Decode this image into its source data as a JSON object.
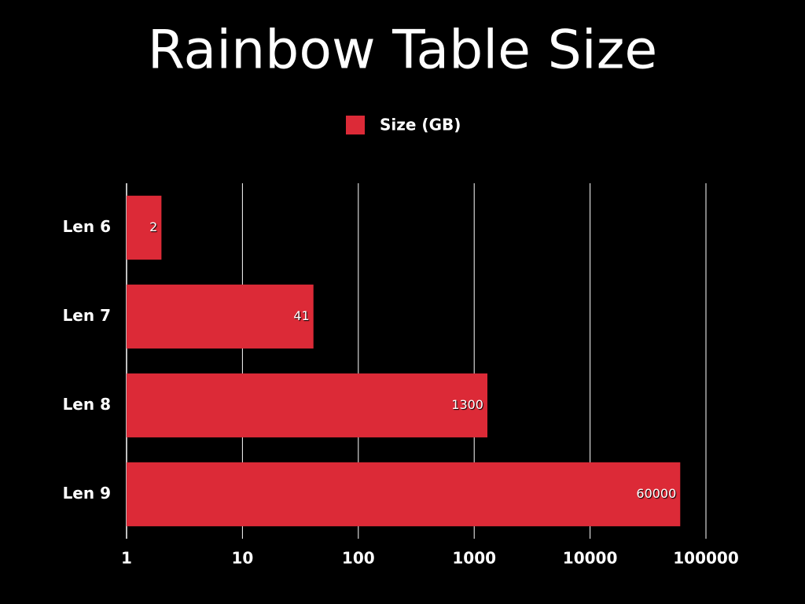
{
  "chart_data": {
    "type": "bar",
    "orientation": "horizontal",
    "title": "Rainbow Table Size",
    "categories": [
      "Len 6",
      "Len 7",
      "Len 8",
      "Len 9"
    ],
    "series": [
      {
        "name": "Size (GB)",
        "color": "#dc2a37",
        "values": [
          2,
          41,
          1300,
          60000
        ]
      }
    ],
    "xscale": "log",
    "xlim": [
      1,
      100000
    ],
    "xticks": [
      1,
      10,
      100,
      1000,
      10000,
      100000
    ],
    "grid": true,
    "legend": "top"
  }
}
